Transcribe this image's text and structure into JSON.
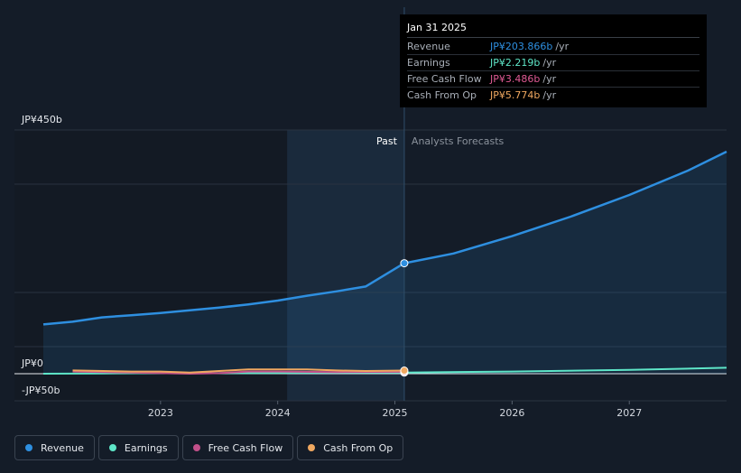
{
  "tooltip": {
    "date": "Jan 31 2025",
    "rows": [
      {
        "name": "Revenue",
        "value": "JP¥203.866b",
        "unit": "/yr",
        "color": "#2e8fe0"
      },
      {
        "name": "Earnings",
        "value": "JP¥2.219b",
        "unit": "/yr",
        "color": "#5ee6c8"
      },
      {
        "name": "Free Cash Flow",
        "value": "JP¥3.486b",
        "unit": "/yr",
        "color": "#e05a94"
      },
      {
        "name": "Cash From Op",
        "value": "JP¥5.774b",
        "unit": "/yr",
        "color": "#f0a860"
      }
    ]
  },
  "legend": [
    {
      "label": "Revenue",
      "color": "#2e8fe0"
    },
    {
      "label": "Earnings",
      "color": "#5ee6c8"
    },
    {
      "label": "Free Cash Flow",
      "color": "#c2508a"
    },
    {
      "label": "Cash From Op",
      "color": "#f0a860"
    }
  ],
  "chart_data": {
    "type": "line",
    "y_tick_labels": [
      "JP¥450b",
      "JP¥0",
      "-JP¥50b"
    ],
    "x_tick_labels": [
      "2023",
      "2024",
      "2025",
      "2026",
      "2027"
    ],
    "region_labels": {
      "past": "Past",
      "forecast": "Analysts Forecasts"
    },
    "ylim": [
      -50,
      450
    ],
    "xlim": [
      2022.0,
      2027.83
    ],
    "past_band_start": 2024.08,
    "divider_x": 2025.08,
    "grid": true,
    "series": [
      {
        "name": "Revenue",
        "color": "#2e8fe0",
        "area": true,
        "points": [
          [
            2022.0,
            91
          ],
          [
            2022.25,
            96
          ],
          [
            2022.5,
            104
          ],
          [
            2022.75,
            108
          ],
          [
            2023.0,
            112
          ],
          [
            2023.25,
            117
          ],
          [
            2023.5,
            122
          ],
          [
            2023.75,
            128
          ],
          [
            2024.0,
            135
          ],
          [
            2024.25,
            144
          ],
          [
            2024.5,
            152
          ],
          [
            2024.75,
            161
          ],
          [
            2025.08,
            204
          ]
        ],
        "forecast": [
          [
            2025.08,
            204
          ],
          [
            2025.5,
            222
          ],
          [
            2026.0,
            254
          ],
          [
            2026.5,
            290
          ],
          [
            2027.0,
            330
          ],
          [
            2027.5,
            375
          ],
          [
            2027.83,
            410
          ]
        ]
      },
      {
        "name": "Earnings",
        "color": "#5ee6c8",
        "points": [
          [
            2022.0,
            0
          ],
          [
            2022.5,
            0.5
          ],
          [
            2023.0,
            1
          ],
          [
            2023.5,
            1
          ],
          [
            2024.0,
            1.5
          ],
          [
            2024.5,
            2
          ],
          [
            2025.08,
            2.2
          ]
        ],
        "forecast": [
          [
            2025.08,
            2.2
          ],
          [
            2026.0,
            4
          ],
          [
            2027.0,
            7
          ],
          [
            2027.83,
            11
          ]
        ]
      },
      {
        "name": "Free Cash Flow",
        "color": "#c2508a",
        "points": [
          [
            2022.25,
            4
          ],
          [
            2022.75,
            2
          ],
          [
            2023.25,
            0
          ],
          [
            2023.5,
            1
          ],
          [
            2023.75,
            4
          ],
          [
            2024.0,
            4
          ],
          [
            2024.5,
            3
          ],
          [
            2025.08,
            3.5
          ]
        ]
      },
      {
        "name": "Cash From Op",
        "color": "#f0a860",
        "points": [
          [
            2022.25,
            6
          ],
          [
            2022.75,
            4
          ],
          [
            2023.0,
            4
          ],
          [
            2023.25,
            2
          ],
          [
            2023.5,
            5
          ],
          [
            2023.75,
            8
          ],
          [
            2024.0,
            8
          ],
          [
            2024.25,
            8
          ],
          [
            2024.5,
            6
          ],
          [
            2024.75,
            5
          ],
          [
            2025.08,
            5.8
          ]
        ]
      }
    ]
  }
}
